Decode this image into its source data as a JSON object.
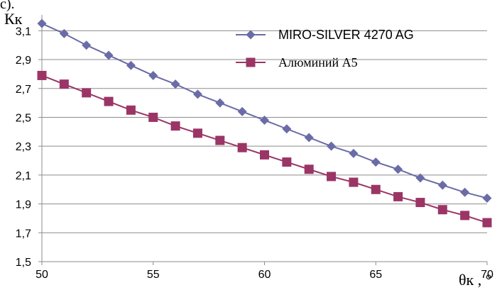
{
  "chart_data": {
    "type": "line",
    "title": "",
    "top_text": "с).",
    "ylabel": "Кк",
    "xlabel": "θк , °",
    "xlim": [
      50,
      70
    ],
    "ylim": [
      1.5,
      3.2
    ],
    "x_ticks": [
      50,
      55,
      60,
      65,
      70
    ],
    "x_tick_labels": [
      "50",
      "55",
      "60",
      "65",
      "70"
    ],
    "y_ticks": [
      1.5,
      1.7,
      1.9,
      2.1,
      2.3,
      2.5,
      2.7,
      2.9,
      3.1
    ],
    "y_tick_labels": [
      "1,5",
      "1,7",
      "1,9",
      "2,1",
      "2,3",
      "2,5",
      "2,7",
      "2,9",
      "3,1"
    ],
    "grid": true,
    "legend_position": "top-right",
    "x": [
      50,
      51,
      52,
      53,
      54,
      55,
      56,
      57,
      58,
      59,
      60,
      61,
      62,
      63,
      64,
      65,
      66,
      67,
      68,
      69,
      70
    ],
    "series": [
      {
        "name": "MIRO-SILVER 4270 AG",
        "color": "#6b6ba7",
        "marker": "diamond",
        "values": [
          3.15,
          3.08,
          3.0,
          2.93,
          2.86,
          2.79,
          2.73,
          2.66,
          2.6,
          2.54,
          2.48,
          2.42,
          2.36,
          2.3,
          2.25,
          2.19,
          2.14,
          2.08,
          2.03,
          1.98,
          1.94
        ]
      },
      {
        "name": "Алюминий А5",
        "color": "#9b3566",
        "marker": "square",
        "values": [
          2.79,
          2.73,
          2.67,
          2.61,
          2.55,
          2.5,
          2.44,
          2.39,
          2.34,
          2.29,
          2.24,
          2.19,
          2.14,
          2.09,
          2.05,
          2.0,
          1.95,
          1.91,
          1.86,
          1.82,
          1.77
        ]
      }
    ]
  }
}
